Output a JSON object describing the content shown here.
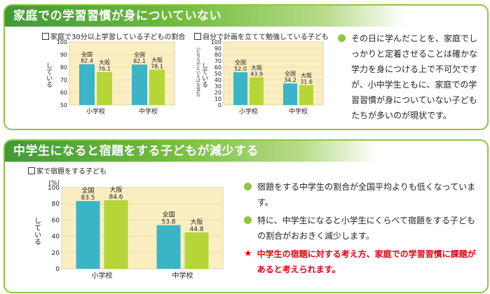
{
  "section1": {
    "heading": "家庭での学習習慣が身についていない",
    "chart1_title": "家庭で30分以上学習している子どもの割合",
    "chart2_title": "自分で計画を立てて勉強している子ども",
    "note": "その日に学んだことを、家庭でしっかりと定着させることは確かな学力を身につける上で不可欠ですが、小中学生ともに、家庭での学習習慣が身についていない子どもたちが多いのが現状です。"
  },
  "section2": {
    "heading": "中学生になると宿題をする子どもが減少する",
    "chart_title": "家で宿題をする子ども",
    "points": [
      "宿題をする中学生の割合が全国平均よりも低くなっています。",
      "特に、中学生になると小学生にくらべて宿題をする子どもの割合がおおきく減少します。"
    ],
    "conclusion": "中学生の宿題に対する考え方、家庭での学習習慣に課題があると考えられます。"
  },
  "colors": {
    "national": "#3cb4c8",
    "osaka": "#b5d638",
    "accent": "#8dc63f",
    "alert": "#e60012",
    "plot_bg": "#fbefc2"
  },
  "chart_data": [
    {
      "type": "bar",
      "title": "家庭で30分以上学習している子どもの割合",
      "unit": "(%)",
      "ylabel": "している",
      "categories": [
        "小学校",
        "中学校"
      ],
      "series": [
        {
          "name": "全国",
          "values": [
            82.4,
            82.1
          ]
        },
        {
          "name": "大阪",
          "values": [
            76.1,
            78.1
          ]
        }
      ],
      "ylim": [
        50,
        100
      ],
      "yticks": [
        50,
        60,
        70,
        80,
        90,
        100
      ]
    },
    {
      "type": "bar",
      "title": "自分で計画を立てて勉強している子ども",
      "unit": "(%)",
      "ylabel": "している",
      "ylabel_note": "（どちらかといえばも含む）",
      "categories": [
        "小学校",
        "中学校"
      ],
      "series": [
        {
          "name": "全国",
          "values": [
            52.0,
            34.2
          ]
        },
        {
          "name": "大阪",
          "values": [
            43.9,
            31.6
          ]
        }
      ],
      "ylim": [
        0,
        100
      ],
      "yticks": [
        0,
        10,
        20,
        30,
        40,
        50,
        60,
        70,
        80,
        90,
        100
      ]
    },
    {
      "type": "bar",
      "title": "家で宿題をする子ども",
      "unit": "(%)",
      "ylabel": "している",
      "categories": [
        "小学校",
        "中学校"
      ],
      "series": [
        {
          "name": "全国",
          "values": [
            83.5,
            53.8
          ]
        },
        {
          "name": "大阪",
          "values": [
            84.6,
            44.8
          ]
        }
      ],
      "ylim": [
        0,
        100
      ],
      "yticks": [
        0,
        20,
        40,
        60,
        80,
        100
      ]
    }
  ]
}
